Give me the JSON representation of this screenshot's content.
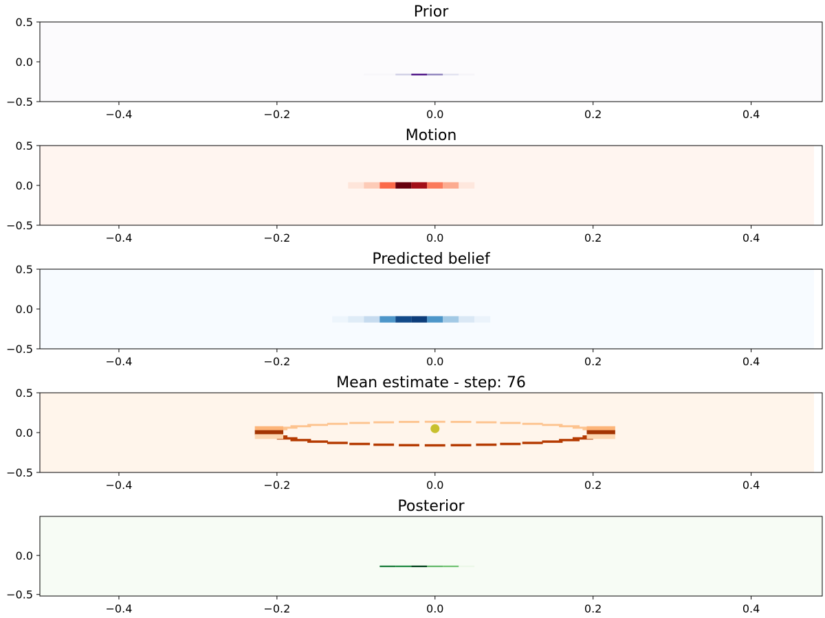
{
  "colors": {
    "Purples": [
      "#fcfbfd",
      "#dadaeb",
      "#9e9ac8",
      "#6a51a3",
      "#3f007d"
    ],
    "Reds": [
      "#fff5f0",
      "#fcbba1",
      "#fb6a4a",
      "#cb181d",
      "#67000d"
    ],
    "Blues": [
      "#f7fbff",
      "#c6dbef",
      "#6baed6",
      "#2171b5",
      "#08306b"
    ],
    "Oranges": [
      "#fff5eb",
      "#fdd0a2",
      "#fd8d3c",
      "#d94801",
      "#7f2704"
    ],
    "Greens": [
      "#f7fcf5",
      "#c7e9c0",
      "#74c476",
      "#238b45",
      "#00441b"
    ],
    "mean_marker": "#c8c02e"
  },
  "chart_data": [
    {
      "type": "heatmap",
      "title": "Prior",
      "colormap": "Purples",
      "xlim": [
        -0.5,
        0.49
      ],
      "ylim": [
        -0.5,
        0.5
      ],
      "xticks": [
        -0.4,
        -0.2,
        0.0,
        0.2,
        0.4
      ],
      "xtick_labels": [
        "−0.4",
        "−0.2",
        "0.0",
        "0.2",
        "0.4"
      ],
      "yticks": [
        0.5,
        0.0,
        -0.5
      ],
      "ytick_labels": [
        "0.5",
        "0.0",
        "−0.5"
      ],
      "cells": [
        {
          "x0": -0.09,
          "x1": -0.05,
          "y0": -0.17,
          "y1": -0.15,
          "v": 0.04
        },
        {
          "x0": -0.05,
          "x1": -0.03,
          "y0": -0.17,
          "y1": -0.15,
          "v": 0.3
        },
        {
          "x0": -0.03,
          "x1": -0.01,
          "y0": -0.17,
          "y1": -0.15,
          "v": 1.0
        },
        {
          "x0": -0.01,
          "x1": 0.01,
          "y0": -0.17,
          "y1": -0.15,
          "v": 0.6
        },
        {
          "x0": 0.01,
          "x1": 0.03,
          "y0": -0.17,
          "y1": -0.15,
          "v": 0.2
        },
        {
          "x0": 0.03,
          "x1": 0.05,
          "y0": -0.17,
          "y1": -0.15,
          "v": 0.05
        }
      ]
    },
    {
      "type": "heatmap",
      "title": "Motion",
      "colormap": "Reds",
      "xlim": [
        -0.5,
        0.49
      ],
      "ylim": [
        -0.5,
        0.5
      ],
      "xticks": [
        -0.4,
        -0.2,
        0.0,
        0.2,
        0.4
      ],
      "xtick_labels": [
        "−0.4",
        "−0.2",
        "0.0",
        "0.2",
        "0.4"
      ],
      "yticks": [
        0.5,
        0.0,
        -0.5
      ],
      "ytick_labels": [
        "0.5",
        "0.0",
        "−0.5"
      ],
      "cells": [
        {
          "x0": -0.11,
          "x1": -0.09,
          "y0": -0.04,
          "y1": 0.04,
          "v": 0.07
        },
        {
          "x0": -0.09,
          "x1": -0.07,
          "y0": -0.04,
          "y1": 0.04,
          "v": 0.18
        },
        {
          "x0": -0.07,
          "x1": -0.05,
          "y0": -0.04,
          "y1": 0.04,
          "v": 0.5
        },
        {
          "x0": -0.05,
          "x1": -0.03,
          "y0": -0.04,
          "y1": 0.04,
          "v": 1.0
        },
        {
          "x0": -0.03,
          "x1": -0.01,
          "y0": -0.04,
          "y1": 0.04,
          "v": 0.85
        },
        {
          "x0": -0.01,
          "x1": 0.01,
          "y0": -0.04,
          "y1": 0.04,
          "v": 0.45
        },
        {
          "x0": 0.01,
          "x1": 0.03,
          "y0": -0.04,
          "y1": 0.04,
          "v": 0.3
        },
        {
          "x0": 0.03,
          "x1": 0.05,
          "y0": -0.04,
          "y1": 0.04,
          "v": 0.06
        }
      ]
    },
    {
      "type": "heatmap",
      "title": "Predicted belief",
      "colormap": "Blues",
      "xlim": [
        -0.5,
        0.49
      ],
      "ylim": [
        -0.5,
        0.5
      ],
      "xticks": [
        -0.4,
        -0.2,
        0.0,
        0.2,
        0.4
      ],
      "xtick_labels": [
        "−0.4",
        "−0.2",
        "0.0",
        "0.2",
        "0.4"
      ],
      "yticks": [
        0.5,
        0.0,
        -0.5
      ],
      "ytick_labels": [
        "0.5",
        "0.0",
        "−0.5"
      ],
      "cells": [
        {
          "x0": -0.13,
          "x1": -0.11,
          "y0": -0.17,
          "y1": -0.09,
          "v": 0.05
        },
        {
          "x0": -0.11,
          "x1": -0.09,
          "y0": -0.17,
          "y1": -0.09,
          "v": 0.12
        },
        {
          "x0": -0.09,
          "x1": -0.07,
          "y0": -0.17,
          "y1": -0.09,
          "v": 0.25
        },
        {
          "x0": -0.07,
          "x1": -0.05,
          "y0": -0.17,
          "y1": -0.09,
          "v": 0.6
        },
        {
          "x0": -0.05,
          "x1": -0.03,
          "y0": -0.17,
          "y1": -0.09,
          "v": 0.9
        },
        {
          "x0": -0.03,
          "x1": -0.01,
          "y0": -0.17,
          "y1": -0.09,
          "v": 0.95
        },
        {
          "x0": -0.01,
          "x1": 0.01,
          "y0": -0.17,
          "y1": -0.09,
          "v": 0.6
        },
        {
          "x0": 0.01,
          "x1": 0.03,
          "y0": -0.17,
          "y1": -0.09,
          "v": 0.35
        },
        {
          "x0": 0.03,
          "x1": 0.05,
          "y0": -0.17,
          "y1": -0.09,
          "v": 0.15
        },
        {
          "x0": 0.05,
          "x1": 0.07,
          "y0": -0.17,
          "y1": -0.09,
          "v": 0.06
        }
      ]
    },
    {
      "type": "heatmap",
      "title": "Mean estimate - step: 76",
      "colormap": "Oranges",
      "xlim": [
        -0.5,
        0.49
      ],
      "ylim": [
        -0.5,
        0.5
      ],
      "xticks": [
        -0.4,
        -0.2,
        0.0,
        0.2,
        0.4
      ],
      "xtick_labels": [
        "−0.4",
        "−0.2",
        "0.0",
        "0.2",
        "0.4"
      ],
      "yticks": [
        0.5,
        0.0,
        -0.5
      ],
      "ytick_labels": [
        "0.5",
        "0.0",
        "−0.5"
      ],
      "ellipse": {
        "cx": 0.0,
        "cy": -0.0,
        "rx": 0.21,
        "ry": 0.16
      },
      "mean_point": {
        "x": 0.0,
        "y": 0.05
      }
    },
    {
      "type": "heatmap",
      "title": "Posterior",
      "colormap": "Greens",
      "xlim": [
        -0.5,
        0.49
      ],
      "ylim": [
        -0.52,
        0.5
      ],
      "xticks": [
        -0.4,
        -0.2,
        0.0,
        0.2,
        0.4
      ],
      "xtick_labels": [
        "−0.4",
        "−0.2",
        "0.0",
        "0.2",
        "0.4"
      ],
      "yticks": [
        0.0,
        -0.5
      ],
      "ytick_labels": [
        "0.0",
        "−0.5"
      ],
      "cells": [
        {
          "x0": -0.07,
          "x1": -0.05,
          "y0": -0.15,
          "y1": -0.13,
          "v": 0.8
        },
        {
          "x0": -0.05,
          "x1": -0.03,
          "y0": -0.15,
          "y1": -0.13,
          "v": 0.75
        },
        {
          "x0": -0.03,
          "x1": -0.01,
          "y0": -0.15,
          "y1": -0.13,
          "v": 1.0
        },
        {
          "x0": -0.01,
          "x1": 0.01,
          "y0": -0.15,
          "y1": -0.13,
          "v": 0.55
        },
        {
          "x0": 0.01,
          "x1": 0.03,
          "y0": -0.15,
          "y1": -0.13,
          "v": 0.5
        },
        {
          "x0": 0.03,
          "x1": 0.05,
          "y0": -0.15,
          "y1": -0.13,
          "v": 0.06
        }
      ]
    }
  ]
}
